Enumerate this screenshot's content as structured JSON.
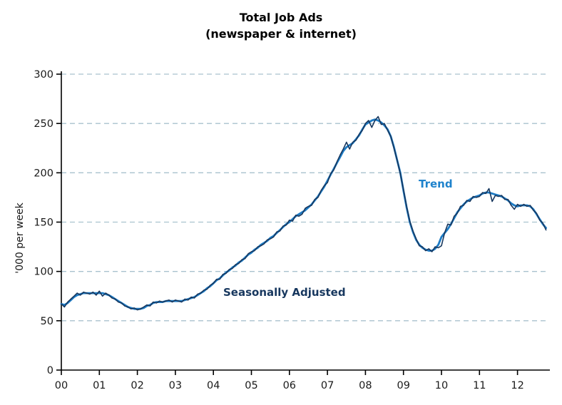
{
  "title": {
    "line1": "Total Job Ads",
    "line2": "(newspaper &amp;_AMP internet)"
  },
  "title_plain": {
    "line1": "Total Job Ads",
    "line2": "(newspaper & internet)"
  },
  "ylabel": "'000 per week",
  "annotations": {
    "trend": "Trend",
    "seasonally_adjusted": "Seasonally Adjusted"
  },
  "colors": {
    "trend_line": "#1d7bc4",
    "seasonally_adjusted_line": "#17375e",
    "trend_label": "#1e82cc",
    "seasonally_adjusted_label": "#17375e",
    "gridline": "#a9c2ce",
    "axis": "#000000",
    "tick_text": "#1a1a1a",
    "title_text": "#000000"
  },
  "chart_data": {
    "type": "line",
    "title": "Total Job Ads (newspaper & internet)",
    "ylabel": "'000 per week",
    "ylim": [
      0,
      300
    ],
    "yticks": [
      0,
      50,
      100,
      150,
      200,
      250,
      300
    ],
    "grid": "horizontal dashed at each ytick except 0",
    "legend_position": "inline text annotations on plot",
    "x_start": "2000-01",
    "x_end": "2012-10",
    "x_frequency": "monthly",
    "xtick_labels": [
      "00",
      "01",
      "02",
      "03",
      "04",
      "05",
      "06",
      "07",
      "08",
      "09",
      "10",
      "11",
      "12"
    ],
    "series": [
      {
        "name": "Trend",
        "color": "#1d7bc4",
        "stroke_width": 2.8,
        "values": [
          67,
          66,
          68,
          71,
          74,
          76,
          77,
          78,
          78,
          78,
          78,
          78,
          78,
          78,
          77,
          76,
          74,
          72,
          70,
          68,
          66,
          64,
          63,
          62,
          62,
          62,
          63,
          65,
          66,
          68,
          69,
          69,
          69,
          70,
          70,
          70,
          70,
          70,
          70,
          71,
          72,
          73,
          74,
          76,
          78,
          80,
          83,
          85,
          88,
          91,
          93,
          96,
          99,
          101,
          104,
          106,
          109,
          111,
          114,
          117,
          119,
          122,
          124,
          127,
          129,
          131,
          134,
          136,
          139,
          142,
          145,
          148,
          150,
          153,
          156,
          158,
          160,
          162,
          165,
          168,
          172,
          176,
          181,
          186,
          192,
          198,
          204,
          210,
          216,
          222,
          226,
          228,
          230,
          234,
          238,
          244,
          249,
          251,
          253,
          254,
          253,
          251,
          248,
          244,
          237,
          226,
          213,
          200,
          182,
          165,
          150,
          140,
          132,
          127,
          124,
          122,
          121,
          121,
          123,
          127,
          135,
          139,
          143,
          148,
          154,
          160,
          164,
          168,
          171,
          173,
          175,
          176,
          177,
          179,
          180,
          180,
          179,
          178,
          177,
          176,
          174,
          172,
          169,
          167,
          166,
          167,
          167,
          167,
          166,
          163,
          158,
          153,
          148,
          144
        ]
      },
      {
        "name": "Seasonally Adjusted",
        "color": "#17375e",
        "stroke_width": 1.6,
        "values": [
          67,
          64,
          69,
          72,
          75,
          78,
          76,
          79,
          78,
          77,
          79,
          76,
          80,
          75,
          78,
          76,
          73,
          72,
          69,
          68,
          65,
          64,
          62,
          63,
          61,
          62,
          64,
          66,
          65,
          69,
          68,
          70,
          69,
          70,
          71,
          69,
          71,
          70,
          69,
          72,
          71,
          74,
          73,
          77,
          78,
          81,
          82,
          86,
          88,
          92,
          92,
          97,
          98,
          102,
          103,
          107,
          108,
          112,
          113,
          118,
          120,
          121,
          125,
          126,
          128,
          132,
          133,
          135,
          140,
          141,
          146,
          147,
          152,
          151,
          157,
          156,
          158,
          164,
          166,
          167,
          173,
          175,
          182,
          187,
          190,
          199,
          203,
          211,
          218,
          224,
          231,
          224,
          231,
          233,
          239,
          243,
          250,
          253,
          246,
          253,
          257,
          249,
          250,
          243,
          237,
          225,
          213,
          199,
          183,
          166,
          151,
          141,
          133,
          126,
          125,
          121,
          123,
          120,
          125,
          124,
          126,
          139,
          148,
          147,
          156,
          159,
          166,
          167,
          172,
          171,
          176,
          175,
          176,
          180,
          179,
          184,
          171,
          177,
          176,
          177,
          173,
          173,
          167,
          163,
          168,
          166,
          168,
          166,
          167,
          162,
          159,
          152,
          149,
          142
        ]
      }
    ]
  }
}
